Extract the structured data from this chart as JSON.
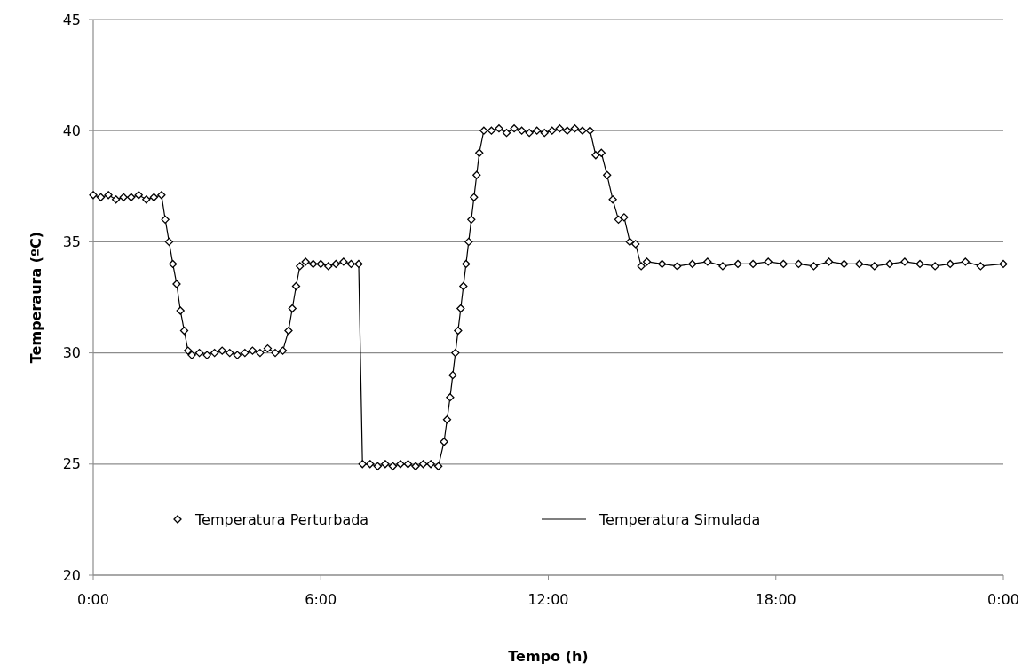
{
  "chart_data": {
    "type": "scatter",
    "xlabel": "Tempo (h)",
    "ylabel": "Temperaura (ºC)",
    "xlim": [
      0,
      24
    ],
    "xticks": [
      {
        "value": 0,
        "label": "0:00"
      },
      {
        "value": 6,
        "label": "6:00"
      },
      {
        "value": 12,
        "label": "12:00"
      },
      {
        "value": 18,
        "label": "18:00"
      },
      {
        "value": 24,
        "label": "0:00"
      }
    ],
    "ylim": [
      20,
      45
    ],
    "yticks": [
      20,
      25,
      30,
      35,
      40,
      45
    ],
    "grid": "y",
    "legend": "bottom",
    "series": [
      {
        "name": "Temperatura Perturbada",
        "marker": "diamond",
        "color": "#000000",
        "x": [
          0,
          0.2,
          0.4,
          0.6,
          0.8,
          1.0,
          1.2,
          1.4,
          1.6,
          1.8,
          1.9,
          2.0,
          2.1,
          2.2,
          2.3,
          2.4,
          2.5,
          2.6,
          2.8,
          3.0,
          3.2,
          3.4,
          3.6,
          3.8,
          4.0,
          4.2,
          4.4,
          4.6,
          4.8,
          5.0,
          5.15,
          5.25,
          5.35,
          5.45,
          5.6,
          5.8,
          6.0,
          6.2,
          6.4,
          6.6,
          6.8,
          7.0,
          7.1,
          7.3,
          7.5,
          7.7,
          7.9,
          8.1,
          8.3,
          8.5,
          8.7,
          8.9,
          9.1,
          9.25,
          9.33,
          9.41,
          9.48,
          9.55,
          9.62,
          9.69,
          9.76,
          9.83,
          9.9,
          9.97,
          10.04,
          10.11,
          10.18,
          10.3,
          10.5,
          10.7,
          10.9,
          11.1,
          11.3,
          11.5,
          11.7,
          11.9,
          12.1,
          12.3,
          12.5,
          12.7,
          12.9,
          13.1,
          13.25,
          13.4,
          13.55,
          13.7,
          13.85,
          14.0,
          14.15,
          14.3,
          14.45,
          14.6,
          15.0,
          15.4,
          15.8,
          16.2,
          16.6,
          17.0,
          17.4,
          17.8,
          18.2,
          18.6,
          19.0,
          19.4,
          19.8,
          20.2,
          20.6,
          21.0,
          21.4,
          21.8,
          22.2,
          22.6,
          23.0,
          23.4,
          24.0
        ],
        "values": [
          37.1,
          37.0,
          37.1,
          36.9,
          37.0,
          37.0,
          37.1,
          36.9,
          37.0,
          37.1,
          36.0,
          35.0,
          34.0,
          33.1,
          31.9,
          31.0,
          30.1,
          29.9,
          30.0,
          29.9,
          30.0,
          30.1,
          30.0,
          29.9,
          30.0,
          30.1,
          30.0,
          30.2,
          30.0,
          30.1,
          31.0,
          32.0,
          33.0,
          33.9,
          34.1,
          34.0,
          34.0,
          33.9,
          34.0,
          34.1,
          34.0,
          34.0,
          25.0,
          25.0,
          24.9,
          25.0,
          24.9,
          25.0,
          25.0,
          24.9,
          25.0,
          25.0,
          24.9,
          26.0,
          27.0,
          28.0,
          29.0,
          30.0,
          31.0,
          32.0,
          33.0,
          34.0,
          35.0,
          36.0,
          37.0,
          38.0,
          39.0,
          40.0,
          40.0,
          40.1,
          39.9,
          40.1,
          40.0,
          39.9,
          40.0,
          39.9,
          40.0,
          40.1,
          40.0,
          40.1,
          40.0,
          40.0,
          38.9,
          39.0,
          38.0,
          36.9,
          36.0,
          36.1,
          35.0,
          34.9,
          33.9,
          34.1,
          34.0,
          33.9,
          34.0,
          34.1,
          33.9,
          34.0,
          34.0,
          34.1,
          34.0,
          34.0,
          33.9,
          34.1,
          34.0,
          34.0,
          33.9,
          34.0,
          34.1,
          34.0,
          33.9,
          34.0,
          34.1,
          33.9,
          34.0
        ]
      },
      {
        "name": "Temperatura Simulada",
        "type": "line",
        "line_style": "solid",
        "color": "#000000",
        "x": [
          0,
          0.2,
          0.4,
          0.6,
          0.8,
          1.0,
          1.2,
          1.4,
          1.6,
          1.8,
          1.9,
          2.0,
          2.1,
          2.2,
          2.3,
          2.4,
          2.5,
          2.6,
          2.8,
          3.0,
          3.2,
          3.4,
          3.6,
          3.8,
          4.0,
          4.2,
          4.4,
          4.6,
          4.8,
          5.0,
          5.15,
          5.25,
          5.35,
          5.45,
          5.6,
          5.8,
          6.0,
          6.2,
          6.4,
          6.6,
          6.8,
          7.0,
          7.1,
          7.3,
          7.5,
          7.7,
          7.9,
          8.1,
          8.3,
          8.5,
          8.7,
          8.9,
          9.1,
          9.25,
          9.33,
          9.41,
          9.48,
          9.55,
          9.62,
          9.69,
          9.76,
          9.83,
          9.9,
          9.97,
          10.04,
          10.11,
          10.18,
          10.3,
          10.5,
          10.7,
          10.9,
          11.1,
          11.3,
          11.5,
          11.7,
          11.9,
          12.1,
          12.3,
          12.5,
          12.7,
          12.9,
          13.1,
          13.25,
          13.4,
          13.55,
          13.7,
          13.85,
          14.0,
          14.15,
          14.3,
          14.45,
          14.6,
          15.0,
          15.4,
          15.8,
          16.2,
          16.6,
          17.0,
          17.4,
          17.8,
          18.2,
          18.6,
          19.0,
          19.4,
          19.8,
          20.2,
          20.6,
          21.0,
          21.4,
          21.8,
          22.2,
          22.6,
          23.0,
          23.4,
          24.0
        ],
        "values": [
          37.1,
          37.0,
          37.1,
          36.9,
          37.0,
          37.0,
          37.1,
          36.9,
          37.0,
          37.1,
          36.0,
          35.0,
          34.0,
          33.1,
          31.9,
          31.0,
          30.1,
          29.9,
          30.0,
          29.9,
          30.0,
          30.1,
          30.0,
          29.9,
          30.0,
          30.1,
          30.0,
          30.2,
          30.0,
          30.1,
          31.0,
          32.0,
          33.0,
          33.9,
          34.1,
          34.0,
          34.0,
          33.9,
          34.0,
          34.1,
          34.0,
          34.0,
          25.0,
          25.0,
          24.9,
          25.0,
          24.9,
          25.0,
          25.0,
          24.9,
          25.0,
          25.0,
          24.9,
          26.0,
          27.0,
          28.0,
          29.0,
          30.0,
          31.0,
          32.0,
          33.0,
          34.0,
          35.0,
          36.0,
          37.0,
          38.0,
          39.0,
          40.0,
          40.0,
          40.1,
          39.9,
          40.1,
          40.0,
          39.9,
          40.0,
          39.9,
          40.0,
          40.1,
          40.0,
          40.1,
          40.0,
          40.0,
          38.9,
          39.0,
          38.0,
          36.9,
          36.0,
          36.1,
          35.0,
          34.9,
          33.9,
          34.1,
          34.0,
          33.9,
          34.0,
          34.1,
          33.9,
          34.0,
          34.0,
          34.1,
          34.0,
          34.0,
          33.9,
          34.1,
          34.0,
          34.0,
          33.9,
          34.0,
          34.1,
          34.0,
          33.9,
          34.0,
          34.1,
          33.9,
          34.0
        ]
      }
    ]
  }
}
